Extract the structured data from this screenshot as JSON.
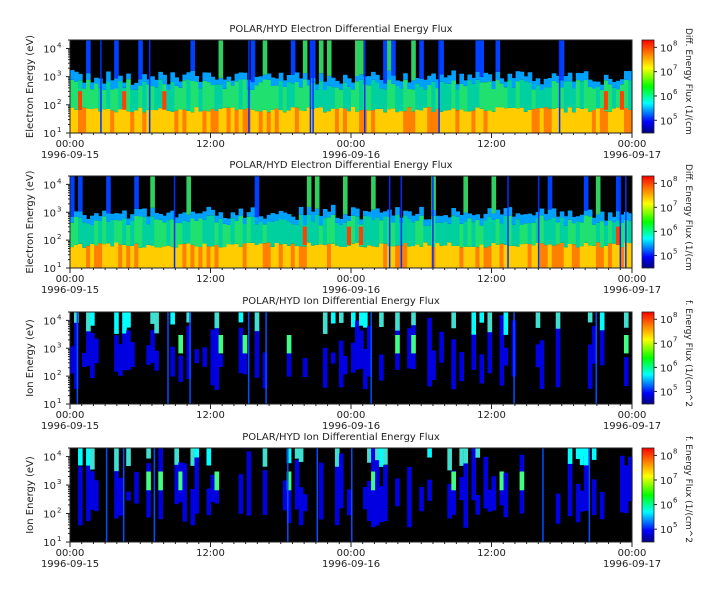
{
  "panels": [
    {
      "title": "POLAR/HYD  Electron Differential Energy Flux",
      "ylabel": "Electron Energy (eV)",
      "cbar_label": "Diff. Energy Flux (1/(cm",
      "species": "electron"
    },
    {
      "title": "POLAR/HYD  Electron Differential Energy Flux",
      "ylabel": "Electron Energy (eV)",
      "cbar_label": "Diff. Energy Flux (1/(cm",
      "species": "electron"
    },
    {
      "title": "POLAR/HYD  Ion Differential Energy Flux",
      "ylabel": "Ion Energy (eV)",
      "cbar_label": "f. Energy Flux (1/(cm^2",
      "species": "ion"
    },
    {
      "title": "POLAR/HYD  Ion Differential Energy Flux",
      "ylabel": "Ion Energy (eV)",
      "cbar_label": "f. Energy Flux (1/(cm^2",
      "species": "ion"
    }
  ],
  "x_ticks": [
    {
      "time": "00:00",
      "date": "1996-09-15"
    },
    {
      "time": "12:00",
      "date": ""
    },
    {
      "time": "00:00",
      "date": "1996-09-16"
    },
    {
      "time": "12:00",
      "date": ""
    },
    {
      "time": "00:00",
      "date": "1996-09-17"
    }
  ],
  "y_ticks": [
    "10",
    "10",
    "10",
    "10"
  ],
  "y_tick_exps": [
    "1",
    "2",
    "3",
    "4"
  ],
  "cbar_ticks": [
    "10",
    "10",
    "10",
    "10"
  ],
  "cbar_tick_exps": [
    "5",
    "6",
    "7",
    "8"
  ],
  "colors": {
    "background": "#ffffff",
    "plot_background": "#000000"
  },
  "chart_data": {
    "type": "heatmap",
    "x_range": [
      "1996-09-15 00:00",
      "1996-09-17 00:00"
    ],
    "y_range_eV": [
      10,
      20000
    ],
    "y_scale": "log",
    "colorbar_range": [
      30000,
      200000000
    ],
    "colorbar_scale": "log",
    "colormap": "rainbow (blue-cyan-green-yellow-red)"
  }
}
